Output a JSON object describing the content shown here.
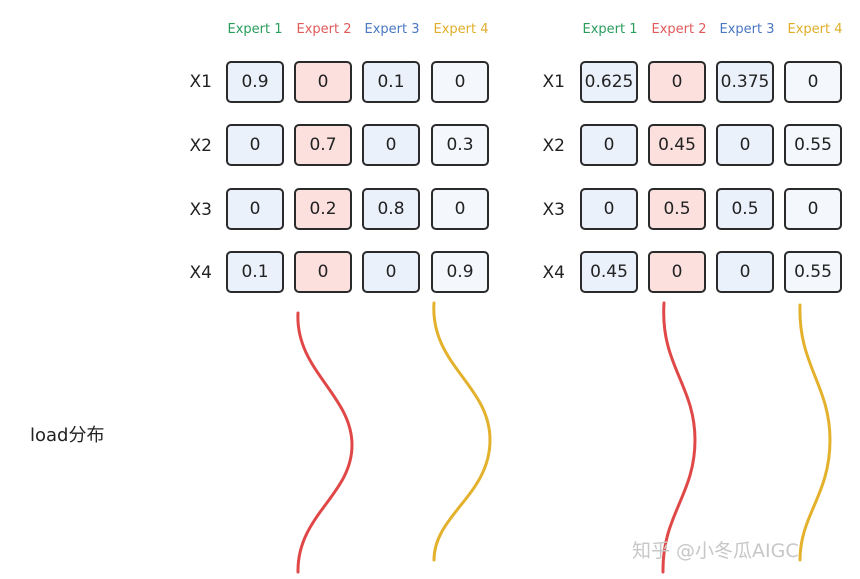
{
  "colors": {
    "expert_1": "#2a9d5c",
    "expert_2": "#e05a5a",
    "expert_3": "#4a78c2",
    "expert_4": "#e0ae2a",
    "curve_red": "#e04848",
    "curve_yellow": "#e3b12c"
  },
  "experts": [
    "Expert 1",
    "Expert 2",
    "Expert 3",
    "Expert 4"
  ],
  "rows": [
    "X1",
    "X2",
    "X3",
    "X4"
  ],
  "left_matrix": [
    [
      "0.9",
      "0",
      "0.1",
      "0"
    ],
    [
      "0",
      "0.7",
      "0",
      "0.3"
    ],
    [
      "0",
      "0.2",
      "0.8",
      "0"
    ],
    [
      "0.1",
      "0",
      "0",
      "0.9"
    ]
  ],
  "right_matrix": [
    [
      "0.625",
      "0",
      "0.375",
      "0"
    ],
    [
      "0",
      "0.45",
      "0",
      "0.55"
    ],
    [
      "0",
      "0.5",
      "0.5",
      "0"
    ],
    [
      "0.45",
      "0",
      "0",
      "0.55"
    ]
  ],
  "side_label": "load分布",
  "watermark": "知乎 @小冬瓜AIGC"
}
